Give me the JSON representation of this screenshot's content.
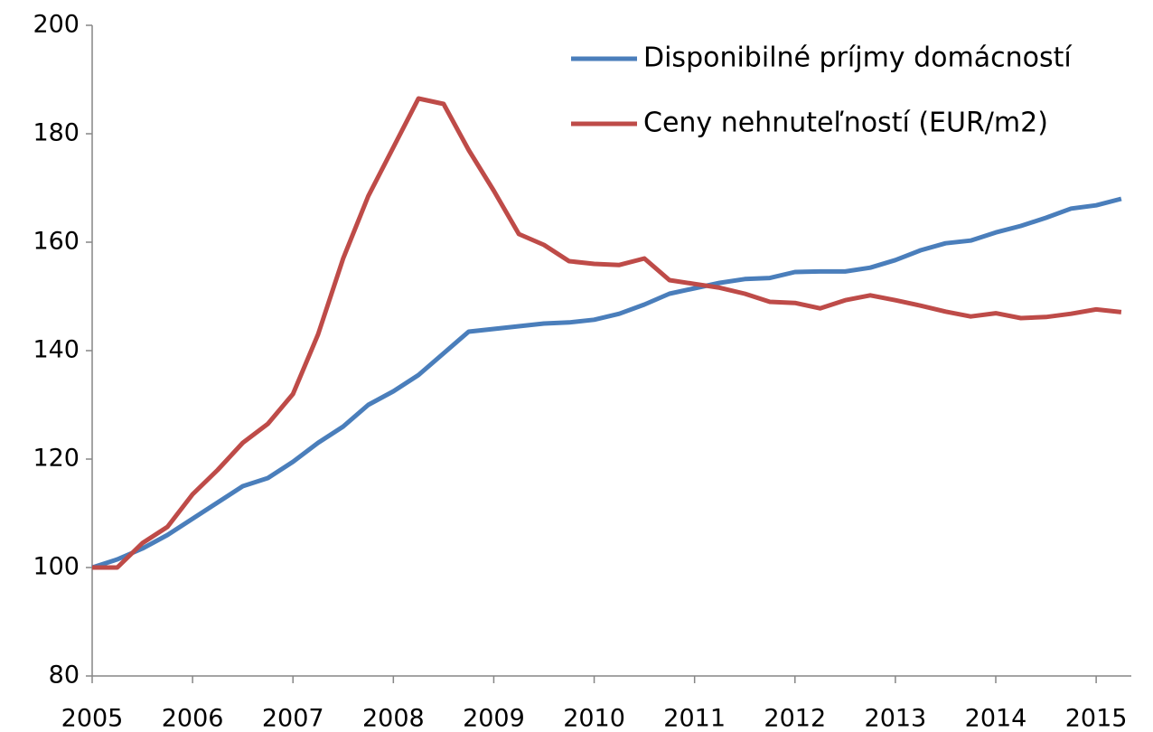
{
  "chart_data": {
    "type": "line",
    "x": [
      2005,
      2005.25,
      2005.5,
      2005.75,
      2006,
      2006.25,
      2006.5,
      2006.75,
      2007,
      2007.25,
      2007.5,
      2007.75,
      2008,
      2008.25,
      2008.5,
      2008.75,
      2009,
      2009.25,
      2009.5,
      2009.75,
      2010,
      2010.25,
      2010.5,
      2010.75,
      2011,
      2011.25,
      2011.5,
      2011.75,
      2012,
      2012.25,
      2012.5,
      2012.75,
      2013,
      2013.25,
      2013.5,
      2013.75,
      2014,
      2014.25,
      2014.5,
      2014.75,
      2015,
      2015.25
    ],
    "series": [
      {
        "name": "Disponibilné príjmy domácností",
        "color": "#4a7ebb",
        "values": [
          100,
          101.5,
          103.5,
          106,
          109,
          112,
          115,
          116.5,
          119.5,
          123,
          126,
          130,
          132.5,
          135.5,
          139.5,
          143.5,
          144,
          144.5,
          145,
          145.2,
          145.7,
          146.8,
          148.5,
          150.5,
          151.5,
          152.5,
          153.2,
          153.4,
          154.5,
          154.6,
          154.6,
          155.3,
          156.7,
          158.5,
          159.8,
          160.3,
          161.8,
          163,
          164.5,
          166.2,
          166.8,
          168
        ]
      },
      {
        "name": "Ceny nehnuteľností (EUR/m2)",
        "color": "#be4b48",
        "values": [
          100,
          100,
          104.5,
          107.5,
          113.5,
          118,
          123,
          126.5,
          132,
          143,
          157,
          168.5,
          177.5,
          186.5,
          185.5,
          177,
          169.5,
          161.5,
          159.5,
          156.5,
          156,
          155.8,
          157,
          153,
          152.3,
          151.6,
          150.5,
          149,
          148.8,
          147.8,
          149.3,
          150.2,
          149.3,
          148.3,
          147.2,
          146.3,
          146.9,
          146,
          146.2,
          146.8,
          147.6,
          147.1
        ]
      }
    ],
    "xlim": [
      2005,
      2015.35
    ],
    "xticks": [
      2005,
      2006,
      2007,
      2008,
      2009,
      2010,
      2011,
      2012,
      2013,
      2014,
      2015
    ],
    "ylim": [
      80,
      200
    ],
    "yticks": [
      80,
      100,
      120,
      140,
      160,
      180,
      200
    ],
    "grid": false,
    "legend": "top-right"
  }
}
